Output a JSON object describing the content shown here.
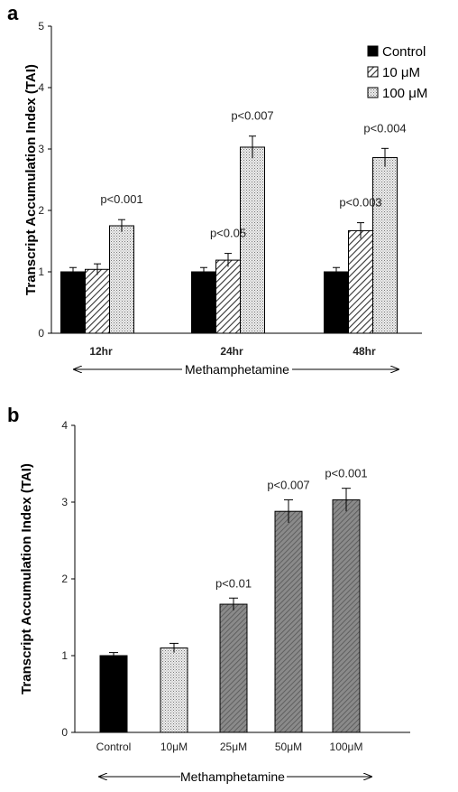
{
  "chart_data": [
    {
      "panel": "a",
      "type": "bar",
      "ylabel": "Transcript Accumulation  Index (TAI)",
      "xlabel": "Methamphetamine",
      "categories": [
        "12hr",
        "24hr",
        "48hr"
      ],
      "ylim": [
        0,
        5
      ],
      "yticks": [
        "0",
        "1",
        "2",
        "3",
        "4",
        "5"
      ],
      "legend_position": "top-right",
      "grid": false,
      "series": [
        {
          "name": "Control",
          "values": [
            1.0,
            1.0,
            1.0
          ],
          "errors": [
            0.07,
            0.07,
            0.07
          ],
          "pattern": "solid"
        },
        {
          "name": "10 μM",
          "values": [
            1.04,
            1.19,
            1.67
          ],
          "errors": [
            0.09,
            0.11,
            0.13
          ],
          "pattern": "hatch"
        },
        {
          "name": "100 μM",
          "values": [
            1.75,
            3.03,
            2.86
          ],
          "errors": [
            0.1,
            0.18,
            0.15
          ],
          "pattern": "dots"
        }
      ],
      "annotations": [
        {
          "category": 0,
          "series": 2,
          "text": "p<0.001"
        },
        {
          "category": 1,
          "series": 1,
          "text": "p<0.05"
        },
        {
          "category": 1,
          "series": 2,
          "text": "p<0.007"
        },
        {
          "category": 2,
          "series": 1,
          "text": "p<0.003"
        },
        {
          "category": 2,
          "series": 2,
          "text": "p<0.004"
        }
      ]
    },
    {
      "panel": "b",
      "type": "bar",
      "ylabel": "Transcript Accumulation  Index (TAI)",
      "xlabel": "Methamphetamine",
      "categories": [
        "Control",
        "10μM",
        "25μM",
        "50μM",
        "100μM"
      ],
      "values": [
        1.0,
        1.1,
        1.67,
        2.88,
        3.03
      ],
      "errors": [
        0.04,
        0.06,
        0.08,
        0.15,
        0.15
      ],
      "patterns": [
        "solid",
        "dots",
        "hatch-dark",
        "hatch-dark",
        "hatch-dark"
      ],
      "annotations": [
        "",
        "",
        "p<0.01",
        "p<0.007",
        "p<0.001"
      ],
      "ylim": [
        0,
        4
      ],
      "yticks": [
        "0",
        "1",
        "2",
        "3",
        "4"
      ],
      "grid": false
    }
  ]
}
